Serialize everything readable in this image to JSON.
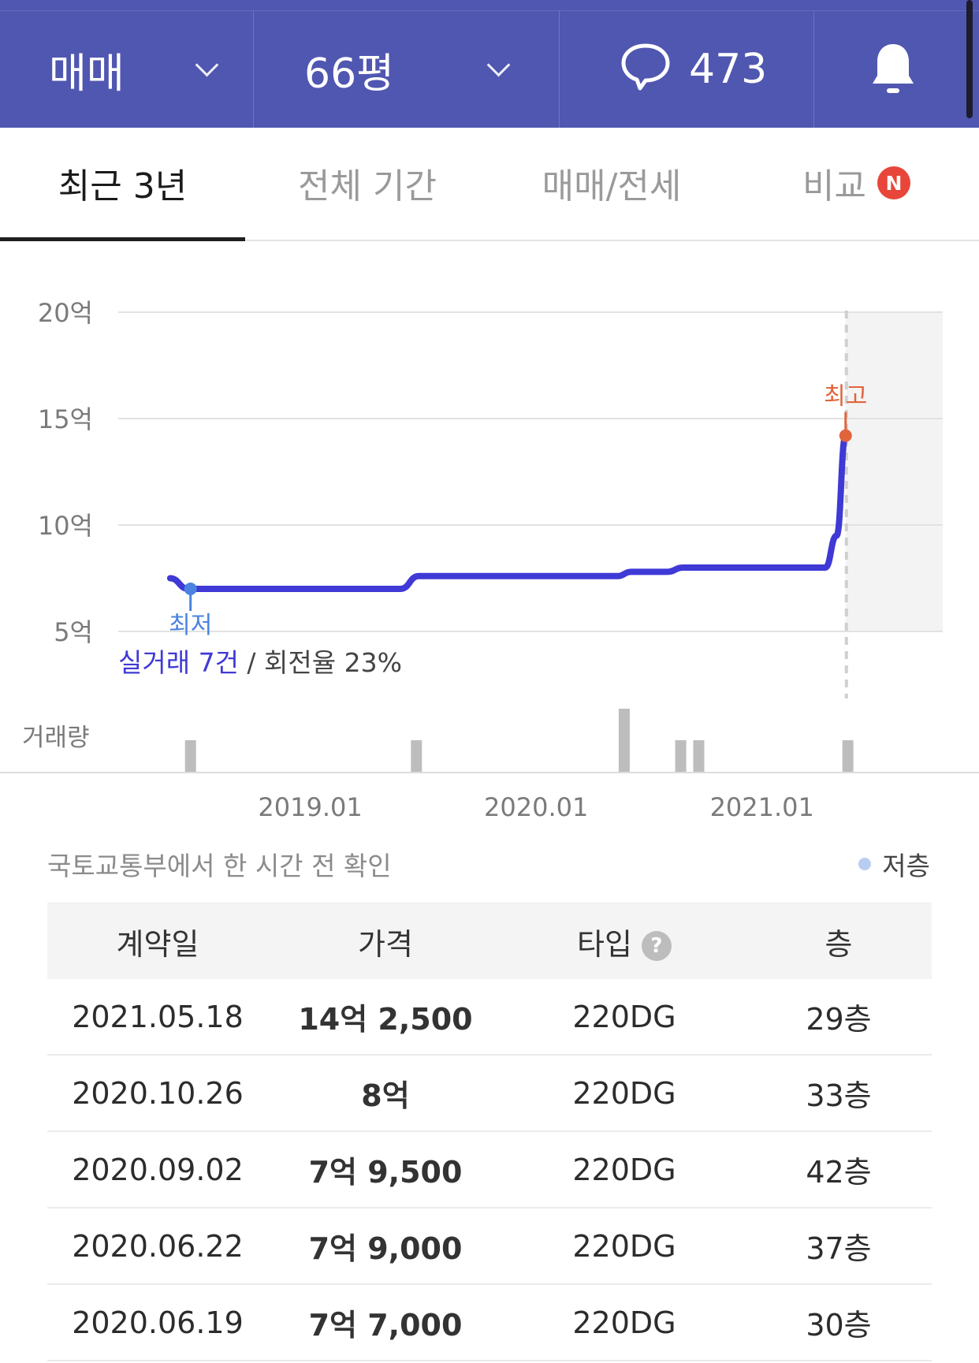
{
  "topbar": {
    "deal_type": "매매",
    "area": "66평",
    "comment_count": "473",
    "icons": [
      "chevron-down-icon",
      "chat-bubble-icon",
      "bell-icon"
    ]
  },
  "tabs": [
    {
      "label": "최근 3년",
      "active": true
    },
    {
      "label": "전체 기간",
      "active": false
    },
    {
      "label": "매매/전세",
      "active": false
    },
    {
      "label": "비교",
      "active": false,
      "badge": "N"
    }
  ],
  "chart_data": {
    "type": "line",
    "y_tick_labels": [
      "20억",
      "15억",
      "10억",
      "5억"
    ],
    "y_ticks": [
      20,
      15,
      10,
      5
    ],
    "ylim": [
      5,
      20
    ],
    "x_tick_labels": [
      "2019.01",
      "2020.01",
      "2021.01"
    ],
    "x_ticks": [
      2019.0,
      2020.0,
      2021.0
    ],
    "xlim": [
      2018.15,
      2021.8
    ],
    "series": [
      {
        "x": [
          2018.38,
          2018.46,
          2018.55,
          2019.0,
          2019.3,
          2019.4,
          2019.48,
          2019.7,
          2020.0,
          2020.3,
          2020.36,
          2020.42,
          2020.48,
          2020.58,
          2020.65,
          2020.72,
          2020.8,
          2021.0,
          2021.2,
          2021.28,
          2021.33,
          2021.37
        ],
        "values": [
          7.5,
          7.0,
          7.0,
          7.0,
          7.0,
          7.0,
          7.6,
          7.6,
          7.6,
          7.6,
          7.6,
          7.8,
          7.8,
          7.8,
          8.0,
          8.0,
          8.0,
          8.0,
          8.0,
          8.0,
          9.5,
          14.2
        ],
        "color": "#3f39d6"
      }
    ],
    "markers": [
      {
        "label": "최저",
        "x": 2018.47,
        "value": 7.0,
        "color": "#4a83e0"
      },
      {
        "label": "최고",
        "x": 2021.37,
        "value": 14.2,
        "color": "#e2643b"
      }
    ],
    "volume_label": "거래량",
    "volume_bars": [
      {
        "x": 2018.47,
        "count": 1
      },
      {
        "x": 2019.47,
        "count": 1
      },
      {
        "x": 2020.39,
        "count": 2
      },
      {
        "x": 2020.64,
        "count": 1
      },
      {
        "x": 2020.72,
        "count": 1
      },
      {
        "x": 2021.38,
        "count": 1
      }
    ],
    "shaded_future": true
  },
  "summary": {
    "deals": "실거래 7건",
    "separator": " / ",
    "turnover": "회전율 23%"
  },
  "source_text": "국토교통부에서 한 시간 전 확인",
  "legend": {
    "label": "저층",
    "color": "#b9cdf3"
  },
  "table": {
    "headers": [
      "계약일",
      "가격",
      "타입",
      "층"
    ],
    "rows": [
      {
        "date": "2021.05.18",
        "price": "14억 2,500",
        "type": "220DG",
        "floor": "29층"
      },
      {
        "date": "2020.10.26",
        "price": "8억",
        "type": "220DG",
        "floor": "33층"
      },
      {
        "date": "2020.09.02",
        "price": "7억 9,500",
        "type": "220DG",
        "floor": "42층"
      },
      {
        "date": "2020.06.22",
        "price": "7억 9,000",
        "type": "220DG",
        "floor": "37층"
      },
      {
        "date": "2020.06.19",
        "price": "7억 7,000",
        "type": "220DG",
        "floor": "30층"
      }
    ]
  }
}
